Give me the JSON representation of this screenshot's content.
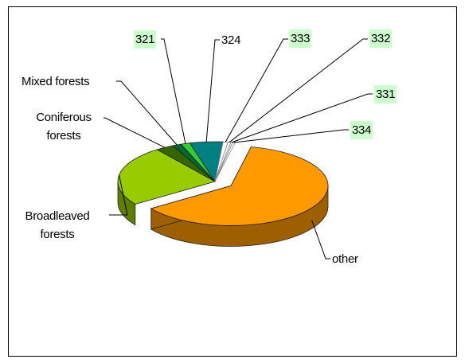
{
  "chart_data": {
    "type": "pie",
    "view": "3d",
    "categories": [
      "other",
      "Broadleaved forests",
      "Coniferous forests",
      "Mixed forests",
      "321",
      "324",
      "333",
      "332",
      "331",
      "334"
    ],
    "values": [
      62,
      24.5,
      3,
      1.5,
      1.5,
      5.5,
      0.8,
      0.5,
      0.3,
      0.4
    ],
    "colors": [
      "#ff9900",
      "#99cc00",
      "#336600",
      "#006633",
      "#33cc33",
      "#008080",
      "#ffffff",
      "#ffffff",
      "#ffffff",
      "#ffffff"
    ],
    "highlighted_labels": [
      "321",
      "333",
      "332",
      "331",
      "334"
    ],
    "highlight_color": "#ccffcc",
    "exploded": [
      "other"
    ]
  }
}
